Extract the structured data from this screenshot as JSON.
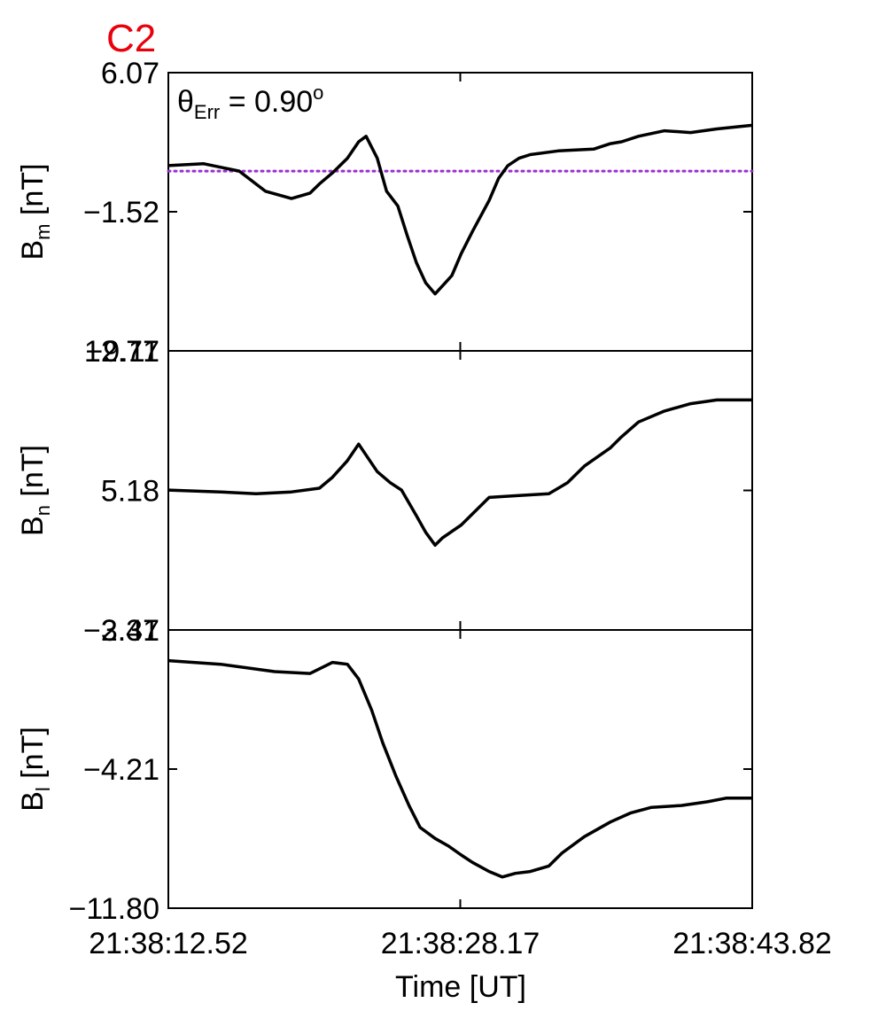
{
  "title": "C2",
  "annotation": {
    "symbol": "θ",
    "sub": "Err",
    "eq": " =  0.90",
    "sup": "o"
  },
  "xlabel": "Time [UT]",
  "chart_data": {
    "type": "line",
    "x_ticks": [
      "21:38:12.52",
      "21:38:28.17",
      "21:38:43.82"
    ],
    "x_range": [
      0,
      31.3
    ],
    "panels": [
      {
        "name": "Bm",
        "ylabel": {
          "main": "B",
          "sub": "m",
          "unit": " [nT]"
        },
        "ylim": [
          -9.11,
          6.07
        ],
        "y_ticks": [
          "6.07",
          "−1.52",
          "−9.11"
        ],
        "reference_line": {
          "value": 0.7,
          "color": "#9b30d0",
          "style": "dotted"
        },
        "series": {
          "color": "#000000",
          "x": [
            0,
            1.9,
            3.8,
            5.2,
            6.6,
            7.6,
            8.1,
            8.8,
            9.6,
            10.2,
            10.6,
            11.2,
            11.7,
            12.3,
            12.8,
            13.3,
            13.8,
            14.3,
            15.2,
            15.7,
            16.3,
            17.2,
            17.7,
            18.2,
            18.8,
            19.4,
            20.9,
            22.8,
            23.7,
            24.3,
            25.2,
            26.6,
            28.0,
            29.4,
            31.3
          ],
          "y": [
            1.0,
            1.1,
            0.7,
            -0.4,
            -0.8,
            -0.5,
            0.0,
            0.6,
            1.4,
            2.3,
            2.6,
            1.4,
            -0.4,
            -1.2,
            -2.8,
            -4.3,
            -5.4,
            -6.0,
            -5.0,
            -3.8,
            -2.6,
            -0.9,
            0.3,
            1.0,
            1.4,
            1.6,
            1.8,
            1.9,
            2.2,
            2.3,
            2.6,
            2.9,
            2.8,
            3.0,
            3.2
          ]
        }
      },
      {
        "name": "Bn",
        "ylabel": {
          "main": "B",
          "sub": "n",
          "unit": " [nT]"
        },
        "ylim": [
          -2.41,
          12.77
        ],
        "y_ticks": [
          "12.77",
          "5.18",
          "−2.41"
        ],
        "series": {
          "color": "#000000",
          "x": [
            0,
            2.8,
            4.7,
            6.6,
            8.1,
            8.8,
            9.6,
            10.2,
            10.6,
            11.2,
            11.9,
            12.5,
            12.9,
            13.3,
            13.8,
            14.3,
            14.7,
            15.7,
            17.2,
            18.8,
            20.4,
            21.4,
            22.3,
            23.7,
            24.3,
            25.2,
            26.6,
            28.0,
            29.4,
            31.3
          ],
          "y": [
            5.2,
            5.1,
            5.0,
            5.1,
            5.3,
            5.9,
            6.8,
            7.7,
            7.1,
            6.2,
            5.6,
            5.2,
            4.5,
            3.8,
            2.9,
            2.2,
            2.6,
            3.3,
            4.8,
            4.9,
            5.0,
            5.6,
            6.5,
            7.5,
            8.1,
            8.9,
            9.5,
            9.9,
            10.1,
            10.1
          ]
        }
      },
      {
        "name": "Bl",
        "ylabel": {
          "main": "B",
          "sub": "l",
          "unit": " [nT]"
        },
        "ylim": [
          -11.8,
          3.37
        ],
        "y_ticks": [
          "3.37",
          "−4.21",
          "−11.80"
        ],
        "series": {
          "color": "#000000",
          "x": [
            0,
            2.8,
            5.7,
            7.6,
            8.8,
            9.6,
            10.2,
            10.9,
            11.5,
            12.2,
            12.9,
            13.5,
            14.3,
            15.0,
            15.7,
            16.3,
            17.2,
            17.9,
            18.6,
            19.4,
            20.4,
            21.1,
            22.3,
            23.7,
            24.8,
            25.9,
            27.5,
            28.9,
            29.9,
            31.3
          ],
          "y": [
            1.7,
            1.5,
            1.1,
            1.0,
            1.6,
            1.5,
            0.7,
            -1.0,
            -2.8,
            -4.6,
            -6.2,
            -7.4,
            -8.0,
            -8.4,
            -8.9,
            -9.3,
            -9.8,
            -10.1,
            -9.9,
            -9.8,
            -9.5,
            -8.8,
            -7.9,
            -7.1,
            -6.6,
            -6.3,
            -6.2,
            -6.0,
            -5.8,
            -5.8
          ]
        }
      }
    ]
  }
}
